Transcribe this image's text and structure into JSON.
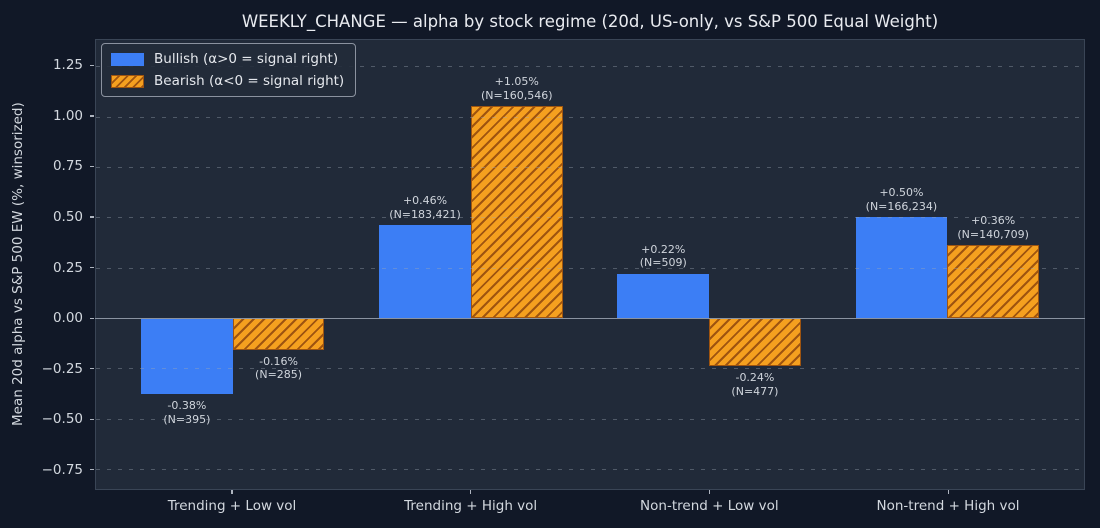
{
  "colors": {
    "background": "#111827",
    "plot_background": "#212a39",
    "spine": "#3a4556",
    "grid": "rgba(158,167,181,0.38)",
    "zero_line": "#8a93a1",
    "title_text": "#e9ebf0",
    "tick_text": "#d3d8df",
    "annotation_text": "#d0d5dc",
    "bullish": "#3c7ef5",
    "bearish": "#f5a01f",
    "bearish_hatch": "#9e5410",
    "legend_border": "#8b929f"
  },
  "chart_data": {
    "type": "bar",
    "title": "WEEKLY_CHANGE — alpha by stock regime (20d, US-only, vs S&P 500 Equal Weight)",
    "ylabel": "Mean 20d alpha vs S&P 500 EW (%, winsorized)",
    "xlabel": "",
    "categories": [
      "Trending + Low vol",
      "Trending + High vol",
      "Non-trend + Low vol",
      "Non-trend + High vol"
    ],
    "series": [
      {
        "name": "Bullish (α>0 = signal right)",
        "style": "solid",
        "values": [
          -0.38,
          0.46,
          0.22,
          0.5
        ],
        "n_counts": [
          395,
          183421,
          509,
          166234
        ],
        "bar_labels": [
          [
            "-0.38%",
            "(N=395)"
          ],
          [
            "+0.46%",
            "(N=183,421)"
          ],
          [
            "+0.22%",
            "(N=509)"
          ],
          [
            "+0.50%",
            "(N=166,234)"
          ]
        ]
      },
      {
        "name": "Bearish (α<0 = signal right)",
        "style": "hatched",
        "values": [
          -0.16,
          1.05,
          -0.24,
          0.36
        ],
        "n_counts": [
          285,
          160546,
          477,
          140709
        ],
        "bar_labels": [
          [
            "-0.16%",
            "(N=285)"
          ],
          [
            "+1.05%",
            "(N=160,546)"
          ],
          [
            "-0.24%",
            "(N=477)"
          ],
          [
            "+0.36%",
            "(N=140,709)"
          ]
        ]
      }
    ],
    "yticks": [
      {
        "value": 1.25,
        "label": "1.25"
      },
      {
        "value": 1.0,
        "label": "1.00"
      },
      {
        "value": 0.75,
        "label": "0.75"
      },
      {
        "value": 0.5,
        "label": "0.50"
      },
      {
        "value": 0.25,
        "label": "0.25"
      },
      {
        "value": 0.0,
        "label": "0.00"
      },
      {
        "value": -0.25,
        "label": "−0.25"
      },
      {
        "value": -0.5,
        "label": "−0.50"
      },
      {
        "value": -0.75,
        "label": "−0.75"
      }
    ],
    "ylim": [
      -0.85,
      1.38
    ],
    "xlim": [
      -0.574,
      3.574
    ],
    "bar_width": 0.385,
    "group_offsets": [
      -0.1925,
      0.1925
    ],
    "grid": "dashed horizontal, drawn above bars",
    "legend_position": "upper left"
  }
}
